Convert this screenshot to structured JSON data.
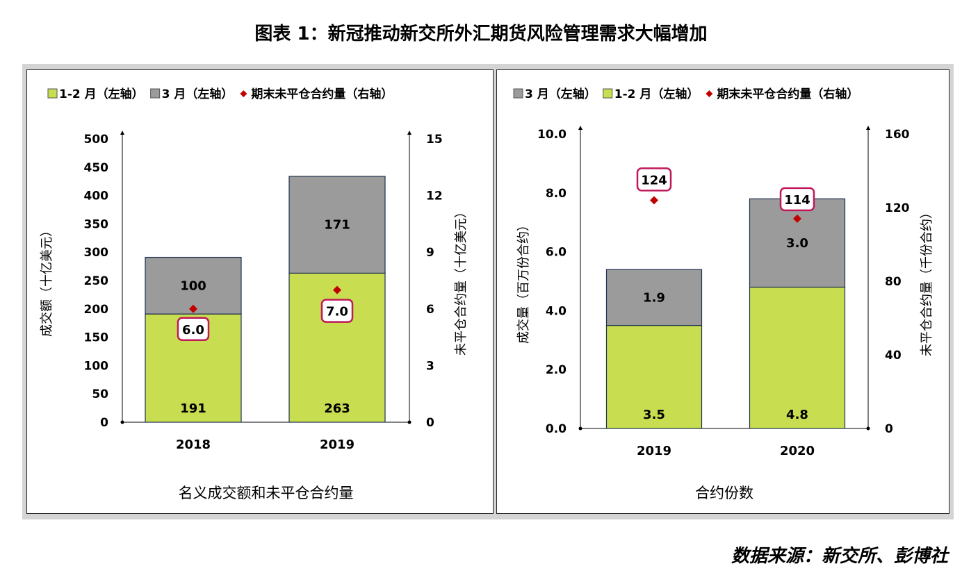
{
  "title": "图表 1：新冠推动新交所外汇期货风险管理需求大幅增加",
  "source": "数据来源：新交所、彭博社",
  "colors": {
    "green": "#c8dd50",
    "gray": "#9b9b9b",
    "diamond": "#c00000",
    "callout_border": "#c0185a"
  },
  "chart_data": [
    {
      "type": "bar",
      "stacked": true,
      "title": "名义成交额和未平仓合约量",
      "legend": [
        "1-2 月（左轴）",
        "3 月（左轴）",
        "期末未平仓合约量（右轴）"
      ],
      "legend_position": "top",
      "categories": [
        "2018",
        "2019"
      ],
      "series": [
        {
          "name": "1-2 月（左轴）",
          "axis": "left",
          "values": [
            191,
            263
          ]
        },
        {
          "name": "3 月（左轴）",
          "axis": "left",
          "values": [
            100,
            171
          ]
        },
        {
          "name": "期末未平仓合约量（右轴）",
          "axis": "right",
          "marker": "diamond",
          "values": [
            6.0,
            7.0
          ]
        }
      ],
      "ylabel_left": "成交额（十亿美元）",
      "ylabel_right": "未平仓合约量（十亿美元）",
      "ylim_left": [
        0,
        500
      ],
      "yticks_left": [
        "0",
        "50",
        "100",
        "150",
        "200",
        "250",
        "300",
        "350",
        "400",
        "450",
        "500"
      ],
      "ylim_right": [
        0,
        15
      ],
      "yticks_right": [
        "0",
        "3",
        "6",
        "9",
        "12",
        "15"
      ],
      "bar_labels": {
        "bottom": [
          "191",
          "263"
        ],
        "top": [
          "100",
          "171"
        ]
      },
      "marker_labels": [
        "6.0",
        "7.0"
      ],
      "grid": false
    },
    {
      "type": "bar",
      "stacked": true,
      "title": "合约份数",
      "legend": [
        "3 月（左轴）",
        "1-2 月（左轴）",
        "期末未平仓合约量（右轴）"
      ],
      "legend_position": "top",
      "categories": [
        "2019",
        "2020"
      ],
      "series": [
        {
          "name": "1-2 月（左轴）",
          "axis": "left",
          "values": [
            3.5,
            4.8
          ]
        },
        {
          "name": "3 月（左轴）",
          "axis": "left",
          "values": [
            1.9,
            3.0
          ]
        },
        {
          "name": "期末未平仓合约量（右轴）",
          "axis": "right",
          "marker": "diamond",
          "values": [
            124,
            114
          ]
        }
      ],
      "ylabel_left": "成交量（百万份合约）",
      "ylabel_right": "未平仓合约量（千份合约）",
      "ylim_left": [
        0,
        10
      ],
      "yticks_left": [
        "0.0",
        "2.0",
        "4.0",
        "6.0",
        "8.0",
        "10.0"
      ],
      "ylim_right": [
        0,
        160
      ],
      "yticks_right": [
        "0",
        "40",
        "80",
        "120",
        "160"
      ],
      "bar_labels": {
        "bottom": [
          "3.5",
          "4.8"
        ],
        "top": [
          "1.9",
          "3.0"
        ]
      },
      "marker_labels": [
        "124",
        "114"
      ],
      "grid": false
    }
  ]
}
